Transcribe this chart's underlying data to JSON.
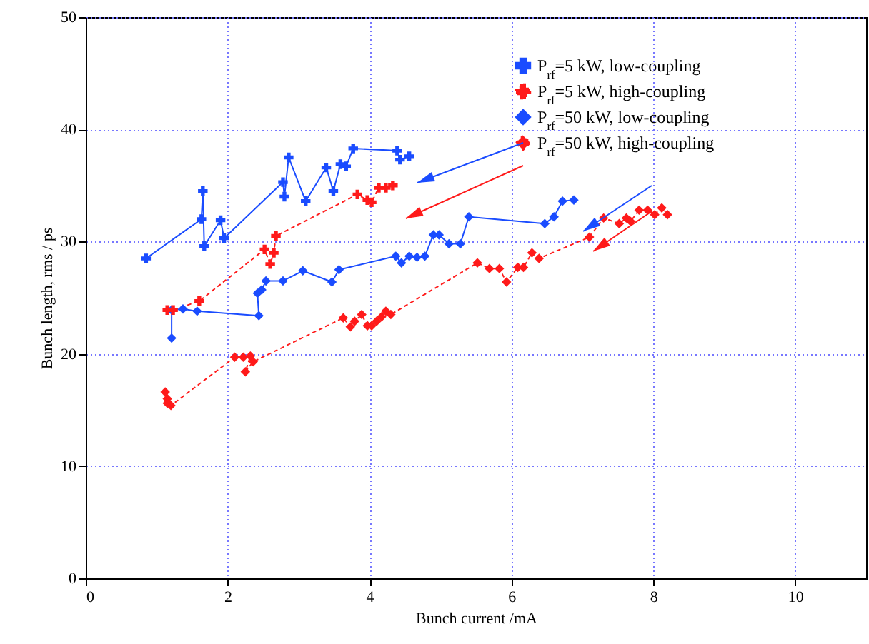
{
  "chart_data": {
    "type": "line",
    "xlabel": "Bunch current  /mA",
    "ylabel": "Bunch length, rms  / ps",
    "xlim": [
      0,
      11
    ],
    "ylim": [
      0,
      50
    ],
    "xticks": [
      0,
      2,
      4,
      6,
      8,
      10
    ],
    "yticks": [
      0,
      10,
      20,
      30,
      40,
      50
    ],
    "grid": true,
    "legend": "top right",
    "series": [
      {
        "name": "P$_{rf}$=5 kW, low-coupling",
        "color": "#1a4cff",
        "marker": "cross",
        "line_style": "solid",
        "x": [
          0.85,
          1.63,
          1.65,
          1.67,
          1.9,
          1.95,
          2.78,
          2.8,
          2.86,
          3.1,
          3.39,
          3.49,
          3.59,
          3.67,
          3.77,
          4.39,
          4.43,
          4.56
        ],
        "values": [
          28.5,
          32.0,
          34.5,
          29.6,
          31.9,
          30.3,
          35.3,
          34.0,
          37.5,
          33.6,
          36.6,
          34.5,
          36.9,
          36.7,
          38.3,
          38.1,
          37.3,
          37.6
        ]
      },
      {
        "name": "P$_{rf}$=5 kW, high-coupling",
        "color": "#ff1a1a",
        "marker": "cross",
        "line_style": "dotted",
        "x": [
          1.15,
          1.23,
          1.6,
          2.52,
          2.6,
          2.65,
          2.68,
          3.83,
          3.97,
          4.03,
          4.13,
          4.23,
          4.33
        ],
        "values": [
          23.9,
          23.9,
          24.7,
          29.3,
          28.0,
          29.0,
          30.5,
          34.2,
          33.7,
          33.5,
          34.8,
          34.8,
          35.0
        ]
      },
      {
        "name": "P$_{rf}$=50 kW, low-coupling",
        "color": "#1a4cff",
        "marker": "diamond",
        "line_style": "solid",
        "x": [
          1.21,
          1.21,
          1.37,
          1.57,
          2.44,
          2.42,
          2.48,
          2.54,
          2.78,
          3.06,
          3.47,
          3.57,
          4.37,
          4.45,
          4.56,
          4.67,
          4.78,
          4.9,
          4.98,
          5.12,
          5.28,
          5.4,
          6.47,
          6.6,
          6.72,
          6.88
        ],
        "values": [
          21.4,
          23.9,
          24.0,
          23.8,
          23.4,
          25.4,
          25.7,
          26.5,
          26.5,
          27.4,
          26.4,
          27.5,
          28.7,
          28.1,
          28.7,
          28.6,
          28.7,
          30.6,
          30.6,
          29.8,
          29.8,
          32.2,
          31.6,
          32.2,
          33.6,
          33.7
        ]
      },
      {
        "name": "P$_{rf}$=50 kW, high-coupling",
        "color": "#ff1a1a",
        "marker": "diamond",
        "line_style": "dotted",
        "x": [
          1.12,
          1.15,
          1.15,
          1.2,
          2.1,
          2.22,
          2.32,
          2.25,
          2.36,
          3.63,
          3.73,
          3.79,
          3.89,
          3.97,
          4.03,
          4.1,
          4.17,
          4.23,
          4.3,
          5.52,
          5.69,
          5.83,
          5.93,
          6.09,
          6.17,
          6.29,
          6.39,
          7.1,
          7.3,
          7.52,
          7.62,
          7.68,
          7.8,
          7.92,
          8.02,
          8.12,
          8.2
        ],
        "values": [
          16.6,
          16.0,
          15.6,
          15.4,
          19.7,
          19.7,
          19.8,
          18.4,
          19.3,
          23.2,
          22.4,
          22.9,
          23.5,
          22.5,
          22.5,
          22.9,
          23.3,
          23.8,
          23.5,
          28.1,
          27.6,
          27.6,
          26.4,
          27.7,
          27.7,
          29.0,
          28.5,
          30.4,
          32.1,
          31.6,
          32.1,
          31.8,
          32.8,
          32.8,
          32.4,
          33.0,
          32.4
        ]
      }
    ]
  }
}
